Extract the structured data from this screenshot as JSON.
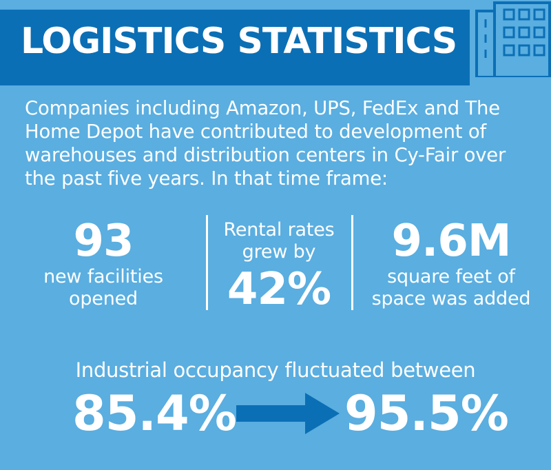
{
  "header": {
    "title": "LOGISTICS STATISTICS",
    "icon": "building-icon"
  },
  "intro": {
    "text": "Companies including Amazon, UPS, FedEx and The Home Depot have contributed to development of warehouses and distribution centers in Cy-Fair over the past five years. In that time frame:"
  },
  "stats": {
    "facilities": {
      "value": "93",
      "line1": "new facilities",
      "line2": "opened"
    },
    "rental": {
      "line1": "Rental rates",
      "line2": "grew by",
      "value": "42%"
    },
    "space": {
      "value": "9.6M",
      "line1": "square feet of",
      "line2": "space was added"
    }
  },
  "occupancy": {
    "label": "Industrial occupancy fluctuated between",
    "from": "85.4%",
    "to": "95.5%",
    "arrow_icon": "arrow-right-icon"
  },
  "colors": {
    "background": "#5aaee0",
    "banner": "#0b6fb5",
    "arrow": "#0b6fb5",
    "text": "#ffffff"
  }
}
